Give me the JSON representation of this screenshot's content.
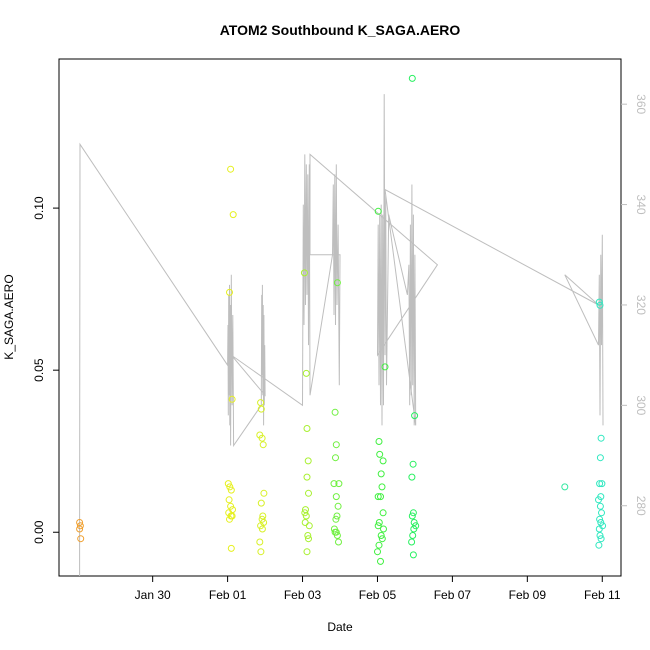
{
  "chart_data": {
    "type": "scatter",
    "title": "ATOM2 Southbound K_SAGA.AERO",
    "xlabel": "Date",
    "ylabel": "K_SAGA.AERO",
    "x_unit": "days since Jan 29",
    "xlim": [
      -1.5,
      13.5
    ],
    "ylim": [
      -0.0135,
      0.146
    ],
    "y2lim": [
      266,
      369
    ],
    "x_ticks": [
      {
        "value": 1,
        "label": "Jan 30"
      },
      {
        "value": 3,
        "label": "Feb 01"
      },
      {
        "value": 5,
        "label": "Feb 03"
      },
      {
        "value": 7,
        "label": "Feb 05"
      },
      {
        "value": 9,
        "label": "Feb 07"
      },
      {
        "value": 11,
        "label": "Feb 09"
      },
      {
        "value": 13,
        "label": "Feb 11"
      }
    ],
    "y_ticks": [
      {
        "value": 0.0,
        "label": "0.00"
      },
      {
        "value": 0.05,
        "label": "0.05"
      },
      {
        "value": 0.1,
        "label": "0.10"
      }
    ],
    "y2_ticks": [
      {
        "value": 280,
        "label": "280"
      },
      {
        "value": 300,
        "label": "300"
      },
      {
        "value": 320,
        "label": "320"
      },
      {
        "value": 340,
        "label": "340"
      },
      {
        "value": 360,
        "label": "360"
      }
    ],
    "colors": {
      "line": "#bebebe",
      "axis": "#000000",
      "y2_axis": "#bebebe"
    },
    "points": [
      {
        "x": -0.95,
        "y": 0.003,
        "c": "#f0a030"
      },
      {
        "x": -0.95,
        "y": 0.001,
        "c": "#f0a030"
      },
      {
        "x": -0.93,
        "y": 0.002,
        "c": "#f0a030"
      },
      {
        "x": -0.92,
        "y": -0.002,
        "c": "#f0a030"
      },
      {
        "x": 3.08,
        "y": 0.112,
        "c": "#e6f020"
      },
      {
        "x": 3.15,
        "y": 0.098,
        "c": "#e6f020"
      },
      {
        "x": 3.05,
        "y": 0.074,
        "c": "#e6f020"
      },
      {
        "x": 3.12,
        "y": 0.041,
        "c": "#e6f020"
      },
      {
        "x": 3.02,
        "y": 0.015,
        "c": "#e6f020"
      },
      {
        "x": 3.06,
        "y": 0.014,
        "c": "#e6f020"
      },
      {
        "x": 3.1,
        "y": 0.013,
        "c": "#e6f020"
      },
      {
        "x": 3.04,
        "y": 0.01,
        "c": "#e6f020"
      },
      {
        "x": 3.08,
        "y": 0.008,
        "c": "#e6f020"
      },
      {
        "x": 3.13,
        "y": 0.007,
        "c": "#e6f020"
      },
      {
        "x": 3.03,
        "y": 0.006,
        "c": "#e6f020"
      },
      {
        "x": 3.09,
        "y": 0.005,
        "c": "#e6f020"
      },
      {
        "x": 3.12,
        "y": 0.005,
        "c": "#e6f020"
      },
      {
        "x": 3.05,
        "y": 0.004,
        "c": "#e6f020"
      },
      {
        "x": 3.1,
        "y": -0.005,
        "c": "#e6f020"
      },
      {
        "x": 3.88,
        "y": 0.04,
        "c": "#d8f028"
      },
      {
        "x": 3.9,
        "y": 0.038,
        "c": "#d8f028"
      },
      {
        "x": 3.86,
        "y": 0.03,
        "c": "#d8f028"
      },
      {
        "x": 3.92,
        "y": 0.029,
        "c": "#d8f028"
      },
      {
        "x": 3.95,
        "y": 0.027,
        "c": "#d8f028"
      },
      {
        "x": 3.97,
        "y": 0.012,
        "c": "#d8f028"
      },
      {
        "x": 3.9,
        "y": 0.009,
        "c": "#d8f028"
      },
      {
        "x": 3.94,
        "y": 0.005,
        "c": "#d8f028"
      },
      {
        "x": 3.92,
        "y": 0.004,
        "c": "#d8f028"
      },
      {
        "x": 3.96,
        "y": 0.003,
        "c": "#d8f028"
      },
      {
        "x": 3.88,
        "y": 0.002,
        "c": "#d8f028"
      },
      {
        "x": 3.93,
        "y": 0.001,
        "c": "#d8f028"
      },
      {
        "x": 3.86,
        "y": -0.003,
        "c": "#d8f028"
      },
      {
        "x": 3.89,
        "y": -0.006,
        "c": "#d8f028"
      },
      {
        "x": 5.05,
        "y": 0.08,
        "c": "#a8f030"
      },
      {
        "x": 5.1,
        "y": 0.049,
        "c": "#a8f030"
      },
      {
        "x": 5.12,
        "y": 0.032,
        "c": "#a8f030"
      },
      {
        "x": 5.15,
        "y": 0.022,
        "c": "#a8f030"
      },
      {
        "x": 5.12,
        "y": 0.017,
        "c": "#a8f030"
      },
      {
        "x": 5.16,
        "y": 0.012,
        "c": "#a8f030"
      },
      {
        "x": 5.08,
        "y": 0.007,
        "c": "#a8f030"
      },
      {
        "x": 5.06,
        "y": 0.006,
        "c": "#a8f030"
      },
      {
        "x": 5.1,
        "y": 0.005,
        "c": "#a8f030"
      },
      {
        "x": 5.07,
        "y": 0.003,
        "c": "#a8f030"
      },
      {
        "x": 5.18,
        "y": 0.002,
        "c": "#a8f030"
      },
      {
        "x": 5.14,
        "y": -0.001,
        "c": "#a8f030"
      },
      {
        "x": 5.16,
        "y": -0.002,
        "c": "#a8f030"
      },
      {
        "x": 5.12,
        "y": -0.006,
        "c": "#a8f030"
      },
      {
        "x": 5.93,
        "y": 0.077,
        "c": "#70f040"
      },
      {
        "x": 5.87,
        "y": 0.037,
        "c": "#70f040"
      },
      {
        "x": 5.9,
        "y": 0.027,
        "c": "#70f040"
      },
      {
        "x": 5.88,
        "y": 0.023,
        "c": "#70f040"
      },
      {
        "x": 5.84,
        "y": 0.015,
        "c": "#70f040"
      },
      {
        "x": 5.97,
        "y": 0.015,
        "c": "#70f040"
      },
      {
        "x": 5.9,
        "y": 0.011,
        "c": "#70f040"
      },
      {
        "x": 5.95,
        "y": 0.008,
        "c": "#70f040"
      },
      {
        "x": 5.92,
        "y": 0.005,
        "c": "#70f040"
      },
      {
        "x": 5.89,
        "y": 0.004,
        "c": "#70f040"
      },
      {
        "x": 5.85,
        "y": 0.001,
        "c": "#70f040"
      },
      {
        "x": 5.87,
        "y": 0.0,
        "c": "#70f040"
      },
      {
        "x": 5.93,
        "y": -0.001,
        "c": "#70f040"
      },
      {
        "x": 5.96,
        "y": -0.003,
        "c": "#70f040"
      },
      {
        "x": 5.9,
        "y": 0.0,
        "c": "#70f040"
      },
      {
        "x": 7.02,
        "y": 0.099,
        "c": "#40f040"
      },
      {
        "x": 7.2,
        "y": 0.051,
        "c": "#40f040"
      },
      {
        "x": 7.04,
        "y": 0.028,
        "c": "#40f040"
      },
      {
        "x": 7.06,
        "y": 0.024,
        "c": "#40f040"
      },
      {
        "x": 7.15,
        "y": 0.022,
        "c": "#40f040"
      },
      {
        "x": 7.1,
        "y": 0.018,
        "c": "#40f040"
      },
      {
        "x": 7.12,
        "y": 0.014,
        "c": "#40f040"
      },
      {
        "x": 7.02,
        "y": 0.011,
        "c": "#40f040"
      },
      {
        "x": 7.08,
        "y": 0.011,
        "c": "#40f040"
      },
      {
        "x": 7.15,
        "y": 0.006,
        "c": "#40f040"
      },
      {
        "x": 7.05,
        "y": 0.003,
        "c": "#40f040"
      },
      {
        "x": 7.02,
        "y": 0.002,
        "c": "#40f040"
      },
      {
        "x": 7.16,
        "y": 0.001,
        "c": "#40f040"
      },
      {
        "x": 7.1,
        "y": -0.001,
        "c": "#40f040"
      },
      {
        "x": 7.13,
        "y": -0.002,
        "c": "#40f040"
      },
      {
        "x": 7.04,
        "y": -0.004,
        "c": "#40f040"
      },
      {
        "x": 7.0,
        "y": -0.006,
        "c": "#40f040"
      },
      {
        "x": 7.08,
        "y": -0.009,
        "c": "#40f040"
      },
      {
        "x": 7.93,
        "y": 0.14,
        "c": "#28f060"
      },
      {
        "x": 7.99,
        "y": 0.036,
        "c": "#28f060"
      },
      {
        "x": 7.95,
        "y": 0.021,
        "c": "#28f060"
      },
      {
        "x": 7.92,
        "y": 0.017,
        "c": "#28f060"
      },
      {
        "x": 7.96,
        "y": 0.006,
        "c": "#28f060"
      },
      {
        "x": 7.93,
        "y": 0.005,
        "c": "#28f060"
      },
      {
        "x": 7.98,
        "y": 0.003,
        "c": "#28f060"
      },
      {
        "x": 8.02,
        "y": 0.002,
        "c": "#28f060"
      },
      {
        "x": 7.97,
        "y": 0.001,
        "c": "#28f060"
      },
      {
        "x": 7.94,
        "y": -0.001,
        "c": "#28f060"
      },
      {
        "x": 7.91,
        "y": -0.003,
        "c": "#28f060"
      },
      {
        "x": 7.96,
        "y": -0.007,
        "c": "#28f060"
      },
      {
        "x": 12.0,
        "y": 0.014,
        "c": "#30e8a0"
      },
      {
        "x": 12.92,
        "y": 0.071,
        "c": "#30e8c0"
      },
      {
        "x": 12.94,
        "y": 0.07,
        "c": "#30e8c0"
      },
      {
        "x": 12.97,
        "y": 0.029,
        "c": "#30e8c0"
      },
      {
        "x": 12.95,
        "y": 0.023,
        "c": "#30e8c0"
      },
      {
        "x": 12.93,
        "y": 0.015,
        "c": "#30e8c0"
      },
      {
        "x": 12.99,
        "y": 0.015,
        "c": "#30e8c0"
      },
      {
        "x": 12.96,
        "y": 0.011,
        "c": "#30e8c0"
      },
      {
        "x": 12.9,
        "y": 0.01,
        "c": "#30e8c0"
      },
      {
        "x": 12.95,
        "y": 0.008,
        "c": "#30e8c0"
      },
      {
        "x": 12.98,
        "y": 0.006,
        "c": "#30e8c0"
      },
      {
        "x": 12.93,
        "y": 0.004,
        "c": "#30e8c0"
      },
      {
        "x": 12.96,
        "y": 0.003,
        "c": "#30e8c0"
      },
      {
        "x": 12.92,
        "y": 0.001,
        "c": "#30e8c0"
      },
      {
        "x": 13.01,
        "y": 0.002,
        "c": "#30e8c0"
      },
      {
        "x": 12.94,
        "y": -0.001,
        "c": "#30e8c0"
      },
      {
        "x": 12.97,
        "y": -0.002,
        "c": "#30e8c0"
      },
      {
        "x": 12.91,
        "y": -0.004,
        "c": "#30e8c0"
      }
    ],
    "line": [
      [
        -0.95,
        266
      ],
      [
        -0.95,
        275
      ],
      [
        -0.94,
        352
      ],
      [
        3.0,
        308
      ],
      [
        3.01,
        316
      ],
      [
        3.02,
        298
      ],
      [
        3.03,
        322
      ],
      [
        3.04,
        302
      ],
      [
        3.05,
        324
      ],
      [
        3.06,
        296
      ],
      [
        3.07,
        320
      ],
      [
        3.08,
        292
      ],
      [
        3.1,
        326
      ],
      [
        3.12,
        300
      ],
      [
        3.14,
        318
      ],
      [
        3.16,
        292
      ],
      [
        3.9,
        300
      ],
      [
        3.91,
        322
      ],
      [
        3.92,
        306
      ],
      [
        3.93,
        324
      ],
      [
        3.94,
        302
      ],
      [
        3.95,
        320
      ],
      [
        3.96,
        296
      ],
      [
        3.97,
        318
      ],
      [
        3.98,
        300
      ],
      [
        3.99,
        312
      ],
      [
        4.0,
        302
      ],
      [
        3.1,
        310
      ],
      [
        5.0,
        300
      ],
      [
        5.02,
        340
      ],
      [
        5.04,
        316
      ],
      [
        5.06,
        350
      ],
      [
        5.08,
        320
      ],
      [
        5.1,
        348
      ],
      [
        5.12,
        322
      ],
      [
        5.14,
        346
      ],
      [
        5.16,
        312
      ],
      [
        5.18,
        348
      ],
      [
        5.2,
        302
      ],
      [
        5.8,
        330
      ],
      [
        5.82,
        344
      ],
      [
        5.84,
        318
      ],
      [
        5.86,
        346
      ],
      [
        5.88,
        316
      ],
      [
        5.9,
        348
      ],
      [
        5.92,
        320
      ],
      [
        5.95,
        336
      ],
      [
        5.98,
        304
      ],
      [
        6.0,
        330
      ],
      [
        5.2,
        330
      ],
      [
        5.2,
        350
      ],
      [
        8.6,
        328
      ],
      [
        7.0,
        310
      ],
      [
        7.02,
        336
      ],
      [
        7.04,
        304
      ],
      [
        7.06,
        338
      ],
      [
        7.08,
        300
      ],
      [
        7.1,
        340
      ],
      [
        7.12,
        296
      ],
      [
        7.14,
        338
      ],
      [
        7.16,
        300
      ],
      [
        7.18,
        362
      ],
      [
        7.2,
        310
      ],
      [
        7.22,
        342
      ],
      [
        7.24,
        304
      ],
      [
        7.3,
        338
      ],
      [
        7.8,
        322
      ],
      [
        7.84,
        328
      ],
      [
        7.86,
        300
      ],
      [
        7.88,
        336
      ],
      [
        7.9,
        302
      ],
      [
        7.92,
        344
      ],
      [
        7.94,
        304
      ],
      [
        7.96,
        338
      ],
      [
        7.98,
        296
      ],
      [
        8.0,
        330
      ],
      [
        8.02,
        296
      ],
      [
        7.2,
        343
      ],
      [
        12.9,
        320
      ],
      [
        12.0,
        326
      ],
      [
        12.9,
        312
      ],
      [
        12.92,
        326
      ],
      [
        12.94,
        298
      ],
      [
        12.96,
        330
      ],
      [
        12.98,
        312
      ],
      [
        13.0,
        334
      ],
      [
        13.02,
        296
      ]
    ]
  }
}
